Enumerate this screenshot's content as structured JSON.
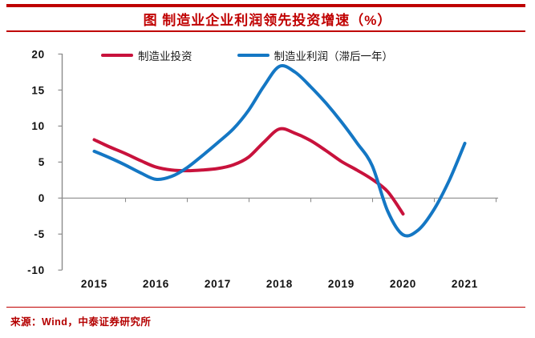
{
  "header": {
    "title": "图  制造业企业利润领先投资增速（%）"
  },
  "footer": {
    "source": "来源：Wind，中泰证券研究所"
  },
  "colors": {
    "accent_red": "#C00000",
    "axis_gray": "#8C8C8C",
    "investment_red": "#C8123C",
    "profit_blue": "#1477C4",
    "background": "#FFFFFF"
  },
  "chart_data": {
    "type": "line",
    "title": "制造业企业利润领先投资增速（%）",
    "xlabel": "",
    "ylabel": "",
    "ylim": [
      -10,
      20
    ],
    "yticks": [
      20,
      15,
      10,
      5,
      0,
      -5,
      -10
    ],
    "x_labels": [
      "2015",
      "2016",
      "2017",
      "2018",
      "2019",
      "2020",
      "2021"
    ],
    "grid": false,
    "legend_position": "top",
    "series": [
      {
        "key": "manufacturing-investment",
        "name": "制造业投资",
        "color": "#C8123C",
        "x": [
          2015,
          2015.25,
          2015.5,
          2015.75,
          2016,
          2016.25,
          2016.5,
          2016.75,
          2017,
          2017.25,
          2017.5,
          2017.75,
          2018,
          2018.25,
          2018.5,
          2018.75,
          2019,
          2019.25,
          2019.5,
          2019.75,
          2020
        ],
        "y": [
          8.1,
          7.1,
          6.2,
          5.2,
          4.3,
          3.9,
          3.8,
          3.9,
          4.1,
          4.6,
          5.7,
          7.8,
          9.6,
          9.0,
          8.0,
          6.6,
          5.1,
          3.9,
          2.6,
          0.9,
          -2.2
        ]
      },
      {
        "key": "manufacturing-profit-lagged-1y",
        "name": "制造业利润（滞后一年）",
        "color": "#1477C4",
        "x": [
          2015,
          2015.25,
          2015.5,
          2015.75,
          2016,
          2016.25,
          2016.5,
          2016.75,
          2017,
          2017.25,
          2017.5,
          2017.75,
          2018,
          2018.25,
          2018.5,
          2018.75,
          2019,
          2019.25,
          2019.5,
          2019.75,
          2020,
          2020.25,
          2020.5,
          2020.75,
          2021
        ],
        "y": [
          6.5,
          5.6,
          4.6,
          3.5,
          2.6,
          3.0,
          4.2,
          5.9,
          7.7,
          9.6,
          12.2,
          15.6,
          18.3,
          17.5,
          15.5,
          13.2,
          10.6,
          7.7,
          4.5,
          -1.8,
          -5.1,
          -4.4,
          -1.6,
          2.5,
          7.6
        ]
      }
    ]
  }
}
